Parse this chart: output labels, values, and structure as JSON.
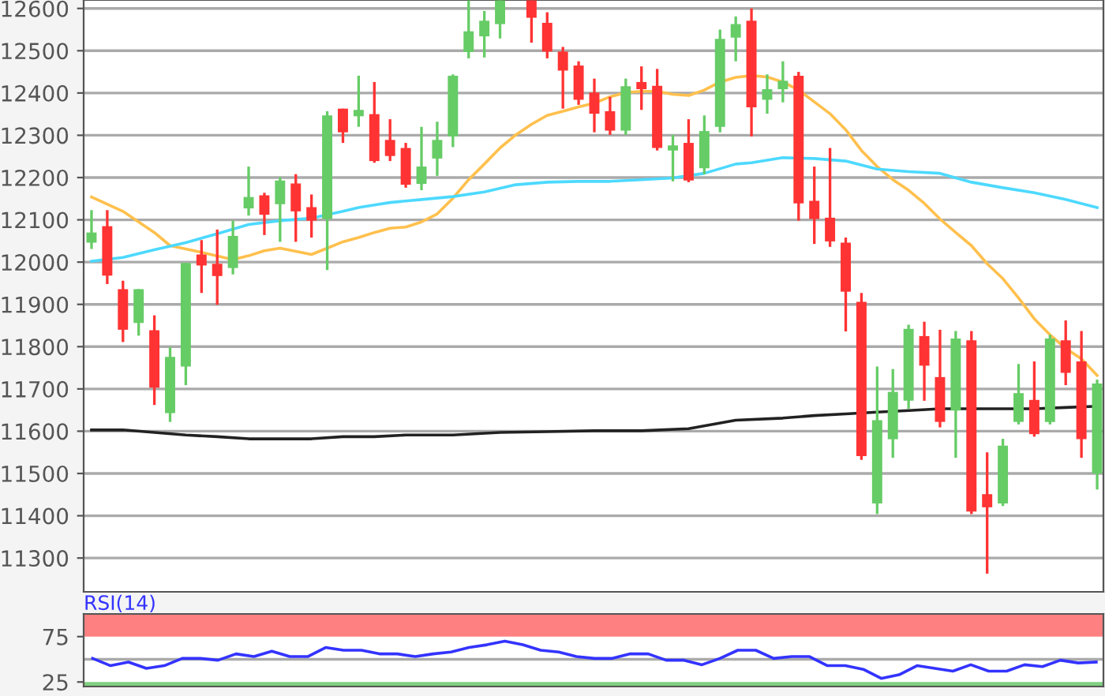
{
  "chart_data": [
    {
      "type": "candlestick",
      "categories": [
        null,
        null,
        null,
        null,
        null,
        null,
        null,
        null,
        null,
        null,
        null,
        null,
        null,
        null,
        null,
        null,
        null,
        null,
        null,
        null,
        null,
        null,
        null,
        null,
        null,
        null,
        null,
        null,
        null,
        null,
        null,
        null,
        null,
        null,
        null,
        null,
        null,
        null,
        null,
        null,
        null,
        null,
        null,
        null,
        null,
        null,
        null,
        null,
        null,
        null,
        null,
        null,
        null,
        null,
        null,
        null,
        null,
        null,
        null,
        null,
        null,
        null,
        null,
        null,
        null
      ],
      "ohlc": [
        [
          12046,
          12123,
          12031,
          12070
        ],
        [
          12085,
          12123,
          11948,
          11968
        ],
        [
          11936,
          11956,
          11811,
          11840
        ],
        [
          11856,
          11936,
          11826,
          11936
        ],
        [
          11839,
          11874,
          11662,
          11703
        ],
        [
          11643,
          11799,
          11622,
          11776
        ],
        [
          11753,
          11998,
          11709,
          11998
        ],
        [
          12018,
          12052,
          11927,
          11992
        ],
        [
          11996,
          12077,
          11899,
          11967
        ],
        [
          11986,
          12098,
          11971,
          12062
        ],
        [
          12127,
          12226,
          12110,
          12154
        ],
        [
          12158,
          12164,
          12064,
          12112
        ],
        [
          12137,
          12201,
          12048,
          12193
        ],
        [
          12186,
          12208,
          12048,
          12120
        ],
        [
          12130,
          12160,
          12058,
          12098
        ],
        [
          12102,
          12357,
          11981,
          12347
        ],
        [
          12363,
          12363,
          12282,
          12307
        ],
        [
          12345,
          12441,
          12320,
          12360
        ],
        [
          12350,
          12426,
          12235,
          12239
        ],
        [
          12289,
          12338,
          12239,
          12251
        ],
        [
          12270,
          12282,
          12176,
          12183
        ],
        [
          12185,
          12320,
          12170,
          12226
        ],
        [
          12245,
          12332,
          12204,
          12289
        ],
        [
          12297,
          12444,
          12272,
          12441
        ],
        [
          12497,
          12619,
          12482,
          12546
        ],
        [
          12534,
          12594,
          12484,
          12571
        ],
        [
          12563,
          12619,
          12529,
          12619
        ],
        null,
        [
          12619,
          12619,
          12519,
          12578
        ],
        [
          12566,
          12591,
          12482,
          12498
        ],
        [
          12498,
          12509,
          12363,
          12453
        ],
        [
          12465,
          12475,
          12372,
          12384
        ],
        [
          12401,
          12434,
          12307,
          12351
        ],
        [
          12357,
          12391,
          12301,
          12311
        ],
        [
          12311,
          12434,
          12301,
          12416
        ],
        [
          12426,
          12463,
          12360,
          12409
        ],
        [
          12417,
          12457,
          12264,
          12270
        ],
        [
          12264,
          12301,
          12191,
          12276
        ],
        [
          12282,
          12338,
          12189,
          12193
        ],
        [
          12222,
          12347,
          12208,
          12310
        ],
        [
          12320,
          12550,
          12307,
          12528
        ],
        [
          12531,
          12581,
          12475,
          12563
        ],
        [
          12571,
          12600,
          12297,
          12366
        ],
        [
          12384,
          12444,
          12351,
          12409
        ],
        [
          12409,
          12475,
          12378,
          12429
        ],
        [
          12441,
          12450,
          12098,
          12139
        ],
        [
          12145,
          12226,
          12043,
          12102
        ],
        [
          12105,
          12270,
          12036,
          12049
        ],
        [
          12046,
          12058,
          11836,
          11930
        ],
        [
          11906,
          11927,
          11532,
          11541
        ],
        [
          11429,
          11753,
          11404,
          11626
        ],
        [
          11581,
          11747,
          11537,
          11693
        ],
        [
          11672,
          11852,
          11653,
          11842
        ],
        [
          11825,
          11859,
          11672,
          11755
        ],
        [
          11728,
          11840,
          11609,
          11622
        ],
        [
          11649,
          11837,
          11537,
          11819
        ],
        [
          11815,
          11837,
          11404,
          11410
        ],
        [
          11451,
          11550,
          11263,
          11420
        ],
        [
          11429,
          11582,
          11423,
          11566
        ],
        [
          11622,
          11759,
          11616,
          11690
        ],
        [
          11674,
          11765,
          11587,
          11593
        ],
        [
          11622,
          11828,
          11616,
          11819
        ],
        [
          11815,
          11862,
          11709,
          11738
        ],
        [
          11765,
          11837,
          11537,
          11581
        ],
        [
          11500,
          11722,
          11462,
          11713
        ]
      ],
      "colors": [
        "#66cc66",
        "#ff3333",
        "#ff3333",
        "#66cc66",
        "#ff3333",
        "#66cc66",
        "#66cc66",
        "#ff3333",
        "#ff3333",
        "#66cc66",
        "#66cc66",
        "#ff3333",
        "#66cc66",
        "#ff3333",
        "#ff3333",
        "#66cc66",
        "#ff3333",
        "#66cc66",
        "#ff3333",
        "#ff3333",
        "#ff3333",
        "#66cc66",
        "#66cc66",
        "#66cc66",
        "#66cc66",
        "#66cc66",
        "#66cc66",
        "#66cc66",
        "#ff3333",
        "#ff3333",
        "#ff3333",
        "#ff3333",
        "#ff3333",
        "#ff3333",
        "#66cc66",
        "#ff3333",
        "#ff3333",
        "#66cc66",
        "#ff3333",
        "#66cc66",
        "#66cc66",
        "#66cc66",
        "#ff3333",
        "#66cc66",
        "#66cc66",
        "#ff3333",
        "#ff3333",
        "#ff3333",
        "#ff3333",
        "#ff3333",
        "#66cc66",
        "#66cc66",
        "#66cc66",
        "#ff3333",
        "#ff3333",
        "#66cc66",
        "#ff3333",
        "#ff3333",
        "#66cc66",
        "#66cc66",
        "#ff3333",
        "#66cc66",
        "#ff3333",
        "#ff3333",
        "#66cc66"
      ],
      "series": [
        {
          "type": "line",
          "color": "#ffc04d",
          "values": [
            12154,
            null,
            12120,
            null,
            12070,
            12039,
            null,
            12023,
            null,
            12006,
            12015,
            12027,
            12033,
            null,
            12018,
            12033,
            12048,
            12058,
            12070,
            12080,
            12083,
            12095,
            12114,
            12151,
            12195,
            12232,
            12270,
            12301,
            12326,
            12347,
            12357,
            12367,
            12376,
            12391,
            12401,
            12404,
            12404,
            12397,
            12394,
            12407,
            12426,
            12437,
            12441,
            12438,
            12426,
            12407,
            12379,
            12351,
            12313,
            12264,
            12226,
            12195,
            12170,
            12139,
            12102,
            12070,
            12039,
            11996,
            11961,
            11915,
            11866,
            11828,
            11796,
            11771,
            11732
          ]
        },
        {
          "type": "line",
          "color": "#4dd9ff",
          "values": [
            12002,
            null,
            12011,
            null,
            12029,
            null,
            12046,
            null,
            12067,
            null,
            12089,
            null,
            12098,
            null,
            12104,
            null,
            12120,
            12129,
            12135,
            12141,
            null,
            12148,
            null,
            12155,
            null,
            12166,
            null,
            12183,
            null,
            12189,
            null,
            12191,
            null,
            12191,
            null,
            12195,
            null,
            12199,
            null,
            12210,
            null,
            12232,
            12235,
            null,
            12247,
            null,
            12245,
            null,
            12239,
            null,
            12220,
            null,
            12214,
            null,
            12210,
            null,
            12189,
            null,
            12176,
            null,
            12164,
            null,
            12148,
            null,
            12129
          ]
        },
        {
          "type": "line",
          "color": "#222222",
          "values": [
            11603,
            null,
            11603,
            null,
            11597,
            null,
            11591,
            null,
            11587,
            null,
            11582,
            null,
            null,
            null,
            11582,
            null,
            11587,
            null,
            11587,
            null,
            11591,
            null,
            null,
            11591,
            null,
            null,
            11597,
            null,
            null,
            11599,
            null,
            null,
            11601,
            null,
            null,
            11601,
            null,
            null,
            11606,
            null,
            null,
            11626,
            null,
            null,
            11631,
            null,
            11637,
            null,
            11641,
            null,
            11645,
            null,
            11649,
            null,
            11653,
            null,
            11653,
            null,
            11653,
            null,
            11653,
            null,
            11656,
            null,
            11659
          ]
        }
      ],
      "ylim": [
        11220,
        12620
      ],
      "yticks": [
        11300,
        11400,
        11500,
        11600,
        11700,
        11800,
        11900,
        12000,
        12100,
        12200,
        12300,
        12400,
        12500,
        12600
      ],
      "grid": "y",
      "tick_labels": "y"
    },
    {
      "type": "line",
      "title": "RSI(14)",
      "categories": [
        null,
        null,
        null,
        null,
        null,
        null,
        null,
        null,
        null,
        null,
        null,
        null,
        null,
        null,
        null,
        null,
        null,
        null,
        null,
        null,
        null,
        null,
        null,
        null,
        null,
        null,
        null,
        null,
        null,
        null,
        null,
        null,
        null,
        null,
        null,
        null,
        null,
        null,
        null,
        null,
        null,
        null,
        null,
        null,
        null,
        null,
        null,
        null,
        null,
        null,
        null,
        null,
        null,
        null,
        null,
        null,
        null
      ],
      "series": [
        {
          "color": "#3333ff",
          "values": [
            51,
            43,
            47,
            40,
            43,
            51,
            51,
            49,
            56,
            53,
            59,
            53,
            53,
            63,
            60,
            60,
            56,
            56,
            53,
            56,
            58,
            63,
            66,
            70,
            66,
            60,
            58,
            53,
            51,
            51,
            56,
            56,
            49,
            49,
            44,
            51,
            60,
            60,
            51,
            53,
            53,
            43,
            43,
            39,
            29,
            33,
            43,
            40,
            37,
            44,
            37,
            37,
            44,
            42,
            49,
            46,
            47
          ]
        }
      ],
      "ylim": [
        20,
        100
      ],
      "yticks": [
        25,
        75
      ],
      "bands": [
        {
          "axis": "y",
          "from": 75,
          "to": 100,
          "color": "#ff8080"
        },
        {
          "axis": "y",
          "from": 20,
          "to": 25,
          "color": "#80d080"
        }
      ],
      "ref_lines": [
        {
          "axis": "y",
          "value": 50,
          "color": "#aaaaaa"
        }
      ],
      "tick_labels": "y"
    }
  ]
}
